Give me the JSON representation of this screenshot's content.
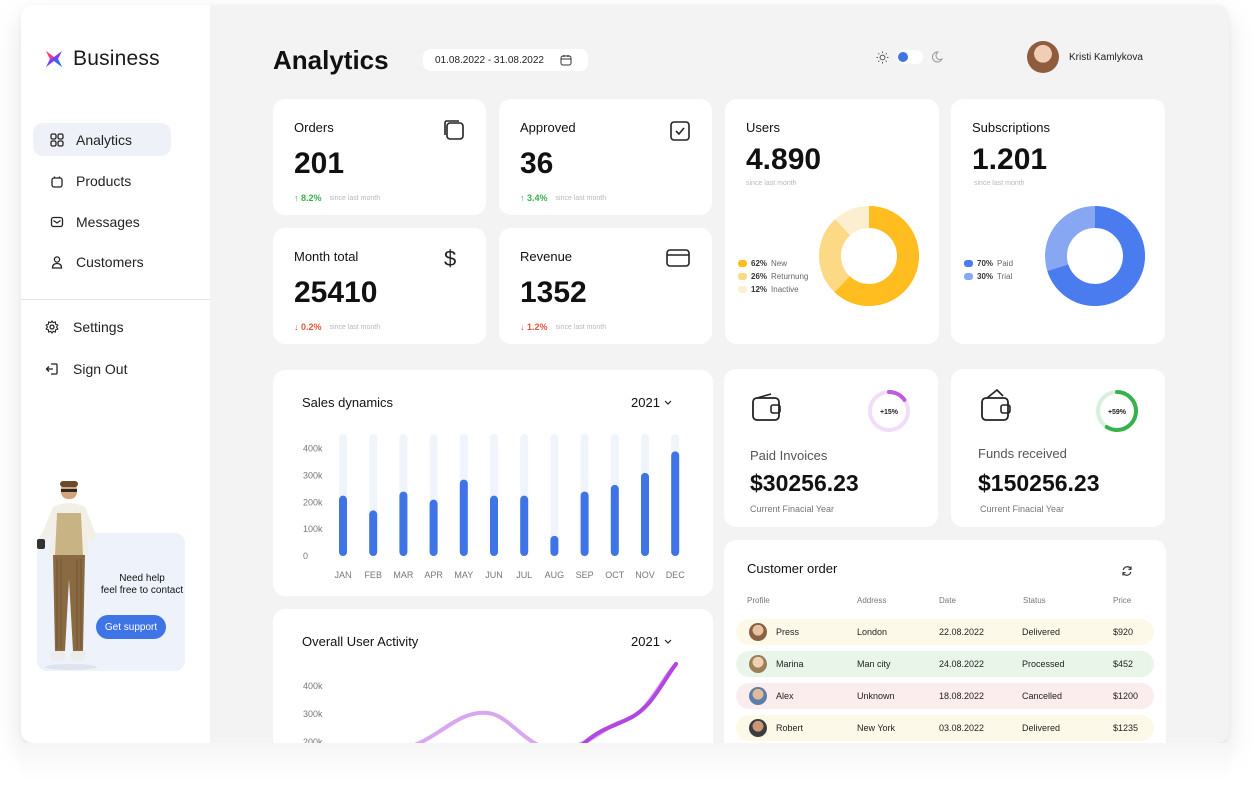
{
  "brand": {
    "name": "Business"
  },
  "nav": [
    {
      "label": "Analytics",
      "icon": "grid-icon",
      "active": true
    },
    {
      "label": "Products",
      "icon": "bag-icon"
    },
    {
      "label": "Messages",
      "icon": "mail-icon"
    },
    {
      "label": "Customers",
      "icon": "user-icon"
    }
  ],
  "secondary_nav": [
    {
      "label": "Settings",
      "icon": "gear-icon"
    },
    {
      "label": "Sign Out",
      "icon": "sign-out-icon"
    }
  ],
  "support": {
    "line1": "Need help",
    "line2": "feel free to contact",
    "button": "Get support"
  },
  "header": {
    "title": "Analytics",
    "date_range": "01.08.2022 - 31.08.2022",
    "user_name": "Kristi Kamlykova"
  },
  "stats": {
    "orders": {
      "label": "Orders",
      "value": "201",
      "trend": "8.2%",
      "direction": "up",
      "note": "since last month"
    },
    "approved": {
      "label": "Approved",
      "value": "36",
      "trend": "3.4%",
      "direction": "up",
      "note": "since last month"
    },
    "month_total": {
      "label": "Month total",
      "value": "25410",
      "trend": "0.2%",
      "direction": "down",
      "note": "since last month"
    },
    "revenue": {
      "label": "Revenue",
      "value": "1352",
      "trend": "1.2%",
      "direction": "down",
      "note": "since last month"
    }
  },
  "users": {
    "label": "Users",
    "value": "4.890",
    "note": "since last month",
    "legend": [
      {
        "pct": "62%",
        "name": "New",
        "color": "#ffbd1f"
      },
      {
        "pct": "26%",
        "name": "Returnung",
        "color": "#fcd985"
      },
      {
        "pct": "12%",
        "name": "Inactive",
        "color": "#fcefcf"
      }
    ]
  },
  "subscriptions": {
    "label": "Subscriptions",
    "value": "1.201",
    "note": "since last month",
    "legend": [
      {
        "pct": "70%",
        "name": "Paid",
        "color": "#4a7cf0"
      },
      {
        "pct": "30%",
        "name": "Trial",
        "color": "#88a7f2"
      }
    ]
  },
  "sales": {
    "title": "Sales dynamics",
    "year": "2021",
    "chart_data": {
      "type": "bar",
      "categories": [
        "JAN",
        "FEB",
        "MAR",
        "APR",
        "MAY",
        "JUN",
        "JUL",
        "AUG",
        "SEP",
        "OCT",
        "NOV",
        "DEC"
      ],
      "values": [
        225,
        170,
        240,
        210,
        285,
        225,
        225,
        75,
        240,
        265,
        310,
        390
      ],
      "yticks": [
        "400k",
        "300k",
        "200k",
        "100k",
        "0"
      ],
      "ylim": [
        0,
        440
      ],
      "bar_color": "#3f74e6",
      "track_color": "#f0f4fb"
    }
  },
  "activity": {
    "title": "Overall User Activity",
    "year": "2021",
    "yticks": [
      "400k",
      "300k",
      "200k"
    ]
  },
  "paid_invoices": {
    "label": "Paid Invoices",
    "amount": "$30256.23",
    "note": "Current Finacial Year",
    "badge": "+15%",
    "ring_color": "#c259e6",
    "ring_fraction": 0.15
  },
  "funds_received": {
    "label": "Funds received",
    "amount": "$150256.23",
    "note": "Current Finacial Year",
    "badge": "+59%",
    "ring_color": "#36b24a",
    "ring_fraction": 0.59
  },
  "customer_order": {
    "title": "Customer order",
    "columns": [
      "Profile",
      "Address",
      "Date",
      "Status",
      "Price"
    ],
    "rows": [
      {
        "name": "Press",
        "address": "London",
        "date": "22.08.2022",
        "status": "Delivered",
        "price": "$920",
        "bg": "#fdf9e9"
      },
      {
        "name": "Marina",
        "address": "Man city",
        "date": "24.08.2022",
        "status": "Processed",
        "price": "$452",
        "bg": "#eaf5ea"
      },
      {
        "name": "Alex",
        "address": "Unknown",
        "date": "18.08.2022",
        "status": "Cancelled",
        "price": "$1200",
        "bg": "#fbeded"
      },
      {
        "name": "Robert",
        "address": "New York",
        "date": "03.08.2022",
        "status": "Delivered",
        "price": "$1235",
        "bg": "#fdf9e9"
      }
    ]
  }
}
